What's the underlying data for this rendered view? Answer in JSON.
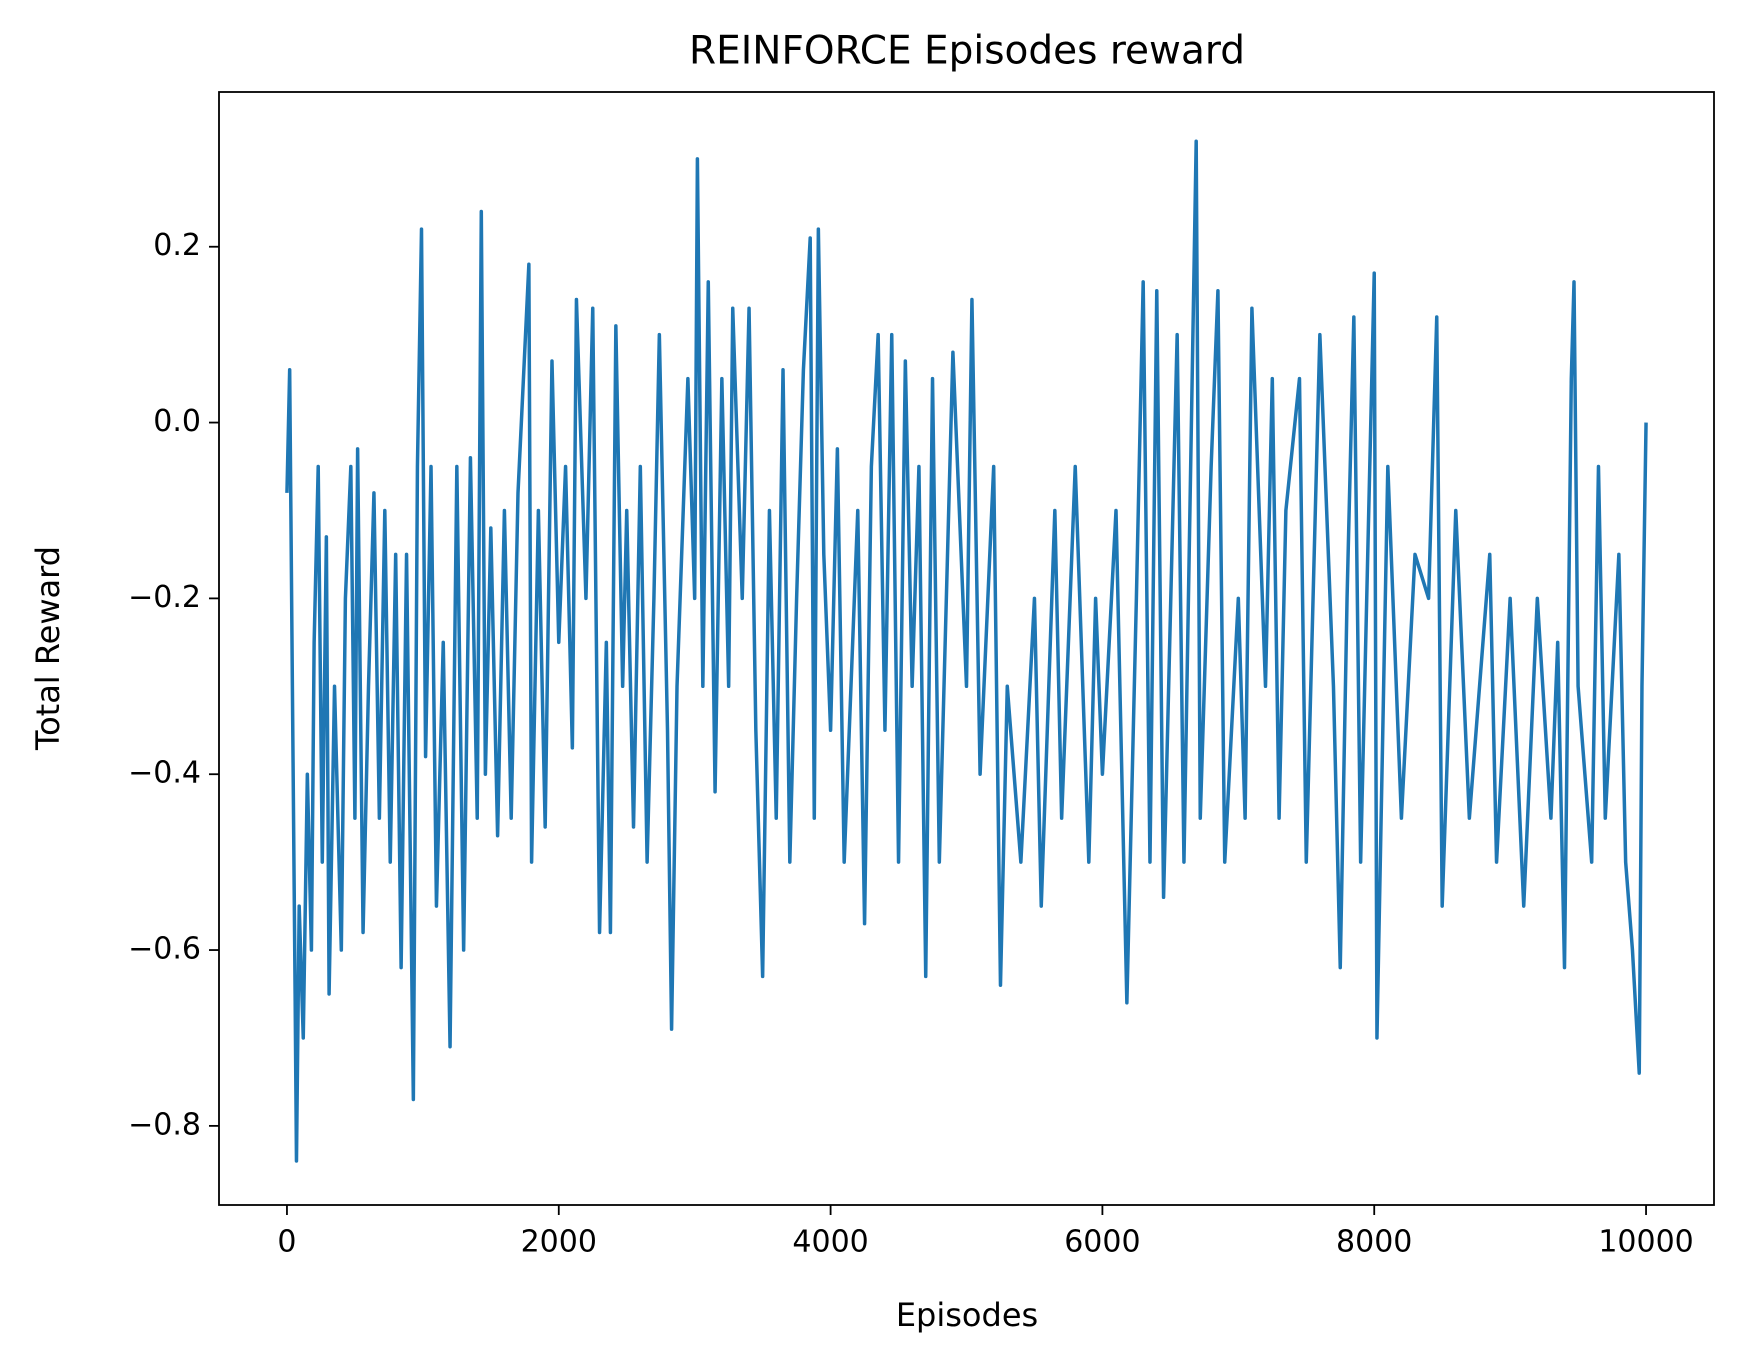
{
  "chart_data": {
    "type": "line",
    "title": "REINFORCE Episodes reward",
    "x_label": "Episodes",
    "y_label": "Total Reward",
    "xlim": [
      -500,
      10500
    ],
    "ylim": [
      -0.89,
      0.376
    ],
    "xticks": [
      0,
      2000,
      4000,
      6000,
      8000,
      10000
    ],
    "yticks": [
      {
        "value": -0.8,
        "label": "−0.8"
      },
      {
        "value": -0.6,
        "label": "−0.6"
      },
      {
        "value": -0.4,
        "label": "−0.4"
      },
      {
        "value": -0.2,
        "label": "−0.2"
      },
      {
        "value": 0,
        "label": "0.0"
      },
      0.2
    ],
    "grid": false,
    "x": [
      0,
      20,
      40,
      60,
      70,
      90,
      120,
      150,
      180,
      200,
      230,
      260,
      290,
      310,
      350,
      400,
      430,
      470,
      500,
      520,
      560,
      600,
      640,
      680,
      720,
      760,
      800,
      840,
      880,
      930,
      960,
      990,
      1020,
      1060,
      1100,
      1150,
      1200,
      1250,
      1300,
      1350,
      1400,
      1430,
      1460,
      1500,
      1550,
      1600,
      1650,
      1700,
      1780,
      1800,
      1850,
      1900,
      1950,
      2000,
      2050,
      2100,
      2130,
      2200,
      2250,
      2300,
      2350,
      2380,
      2420,
      2470,
      2500,
      2550,
      2600,
      2650,
      2700,
      2740,
      2800,
      2830,
      2870,
      2950,
      3000,
      3020,
      3060,
      3100,
      3150,
      3200,
      3250,
      3280,
      3350,
      3400,
      3450,
      3500,
      3550,
      3600,
      3650,
      3700,
      3750,
      3800,
      3850,
      3880,
      3910,
      3950,
      4000,
      4050,
      4100,
      4200,
      4250,
      4300,
      4350,
      4400,
      4450,
      4500,
      4550,
      4600,
      4650,
      4700,
      4750,
      4800,
      4900,
      5000,
      5040,
      5100,
      5200,
      5250,
      5300,
      5400,
      5500,
      5550,
      5650,
      5700,
      5800,
      5900,
      5950,
      6000,
      6100,
      6180,
      6250,
      6300,
      6350,
      6400,
      6450,
      6550,
      6600,
      6690,
      6720,
      6800,
      6850,
      6900,
      7000,
      7050,
      7100,
      7200,
      7250,
      7300,
      7350,
      7450,
      7500,
      7600,
      7700,
      7750,
      7800,
      7850,
      7900,
      8000,
      8020,
      8100,
      8200,
      8300,
      8400,
      8460,
      8500,
      8600,
      8700,
      8850,
      8900,
      9000,
      9100,
      9200,
      9300,
      9350,
      9400,
      9450,
      9470,
      9500,
      9600,
      9650,
      9700,
      9800,
      9850,
      9900,
      9950,
      9970,
      10000
    ],
    "series": [
      {
        "color": "#1f77b4",
        "values": [
          -0.08,
          0.06,
          -0.3,
          -0.65,
          -0.84,
          -0.55,
          -0.7,
          -0.4,
          -0.6,
          -0.25,
          -0.05,
          -0.5,
          -0.13,
          -0.65,
          -0.3,
          -0.6,
          -0.2,
          -0.05,
          -0.45,
          -0.03,
          -0.58,
          -0.3,
          -0.08,
          -0.45,
          -0.1,
          -0.5,
          -0.15,
          -0.62,
          -0.15,
          -0.77,
          -0.05,
          0.22,
          -0.38,
          -0.05,
          -0.55,
          -0.25,
          -0.71,
          -0.05,
          -0.6,
          -0.04,
          -0.45,
          0.24,
          -0.4,
          -0.12,
          -0.47,
          -0.1,
          -0.45,
          -0.08,
          0.18,
          -0.5,
          -0.1,
          -0.46,
          0.07,
          -0.25,
          -0.05,
          -0.37,
          0.14,
          -0.2,
          0.13,
          -0.58,
          -0.25,
          -0.58,
          0.11,
          -0.3,
          -0.1,
          -0.46,
          -0.05,
          -0.5,
          -0.2,
          0.1,
          -0.35,
          -0.69,
          -0.3,
          0.05,
          -0.2,
          0.3,
          -0.3,
          0.16,
          -0.42,
          0.05,
          -0.3,
          0.13,
          -0.2,
          0.13,
          -0.35,
          -0.63,
          -0.1,
          -0.45,
          0.06,
          -0.5,
          -0.2,
          0.06,
          0.21,
          -0.45,
          0.22,
          -0.15,
          -0.35,
          -0.03,
          -0.5,
          -0.1,
          -0.57,
          -0.05,
          0.1,
          -0.35,
          0.1,
          -0.5,
          0.07,
          -0.3,
          -0.05,
          -0.63,
          0.05,
          -0.5,
          0.08,
          -0.3,
          0.14,
          -0.4,
          -0.05,
          -0.64,
          -0.3,
          -0.5,
          -0.2,
          -0.55,
          -0.1,
          -0.45,
          -0.05,
          -0.5,
          -0.2,
          -0.4,
          -0.1,
          -0.66,
          -0.2,
          0.16,
          -0.5,
          0.15,
          -0.54,
          0.1,
          -0.5,
          0.32,
          -0.45,
          -0.05,
          0.15,
          -0.5,
          -0.2,
          -0.45,
          0.13,
          -0.3,
          0.05,
          -0.45,
          -0.1,
          0.05,
          -0.5,
          0.1,
          -0.3,
          -0.62,
          -0.2,
          0.12,
          -0.5,
          0.17,
          -0.7,
          -0.05,
          -0.45,
          -0.15,
          -0.2,
          0.12,
          -0.55,
          -0.1,
          -0.45,
          -0.15,
          -0.5,
          -0.2,
          -0.55,
          -0.2,
          -0.45,
          -0.25,
          -0.62,
          0.05,
          0.16,
          -0.3,
          -0.5,
          -0.05,
          -0.45,
          -0.15,
          -0.5,
          -0.6,
          -0.74,
          -0.3,
          0.0
        ]
      }
    ]
  }
}
